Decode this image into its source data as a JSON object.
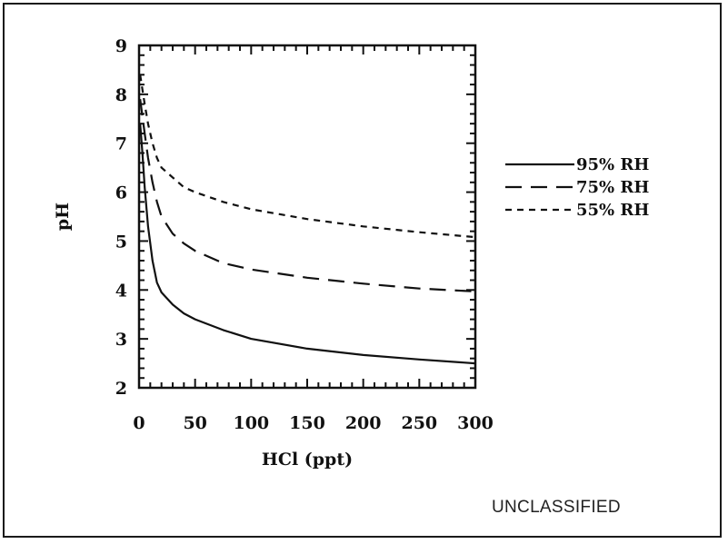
{
  "chart_data": {
    "type": "line",
    "title": "",
    "xlabel": "HCl (ppt)",
    "ylabel": "pH",
    "xlim": [
      0,
      300
    ],
    "ylim": [
      2,
      9
    ],
    "xticks": [
      0,
      50,
      100,
      150,
      200,
      250,
      300
    ],
    "yticks": [
      2,
      3,
      4,
      5,
      6,
      7,
      8,
      9
    ],
    "grid": false,
    "legend_position": "right",
    "series": [
      {
        "name": "95% RH",
        "style": "solid",
        "x": [
          1,
          3,
          5,
          8,
          12,
          16,
          20,
          30,
          40,
          50,
          75,
          100,
          150,
          200,
          250,
          300
        ],
        "y": [
          7.4,
          6.8,
          6.1,
          5.3,
          4.6,
          4.15,
          3.95,
          3.7,
          3.52,
          3.4,
          3.18,
          3.0,
          2.8,
          2.67,
          2.58,
          2.5
        ]
      },
      {
        "name": "75% RH",
        "style": "dashed",
        "x": [
          1,
          3,
          5,
          8,
          12,
          16,
          20,
          30,
          40,
          50,
          75,
          100,
          150,
          200,
          250,
          300
        ],
        "y": [
          7.9,
          7.55,
          7.2,
          6.7,
          6.2,
          5.8,
          5.5,
          5.15,
          4.95,
          4.8,
          4.55,
          4.42,
          4.25,
          4.13,
          4.03,
          3.97
        ]
      },
      {
        "name": "55% RH",
        "style": "dotted",
        "x": [
          1,
          3,
          5,
          8,
          12,
          16,
          20,
          30,
          40,
          50,
          75,
          100,
          150,
          200,
          250,
          300
        ],
        "y": [
          8.4,
          8.1,
          7.8,
          7.4,
          7.0,
          6.7,
          6.5,
          6.3,
          6.1,
          6.0,
          5.8,
          5.65,
          5.45,
          5.3,
          5.18,
          5.08
        ]
      }
    ]
  },
  "footer": {
    "classification": "UNCLASSIFIED"
  }
}
